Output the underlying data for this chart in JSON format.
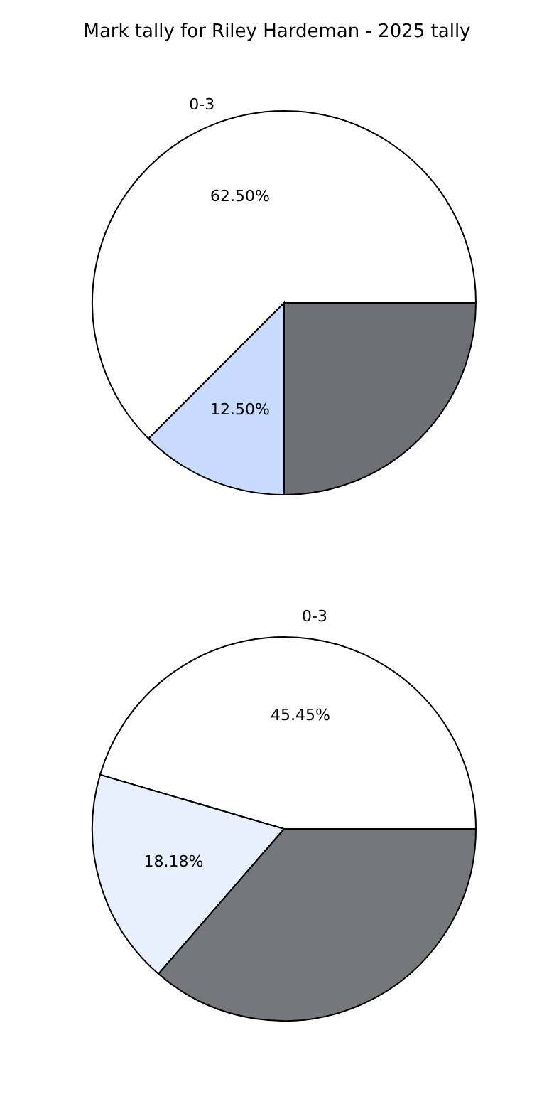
{
  "chart_data": [
    {
      "type": "pie",
      "title": "Mark tally for Riley Hardeman - 2025 tally",
      "categories": [
        "0-3",
        null,
        null
      ],
      "values": [
        62.5,
        12.5,
        25
      ],
      "colors": [
        "#ffffff",
        "#c6dbfd",
        "#6e7076"
      ],
      "value_labels": [
        "62.50%",
        "12.50%",
        null
      ]
    },
    {
      "type": "pie",
      "categories": [
        "0-3",
        null,
        null
      ],
      "values": [
        45.45,
        18.18,
        36.37
      ],
      "colors": [
        "#ffffff",
        "#e8f0fd",
        "#75777b"
      ],
      "value_labels": [
        "45.45%",
        "18.18%",
        null
      ]
    }
  ]
}
